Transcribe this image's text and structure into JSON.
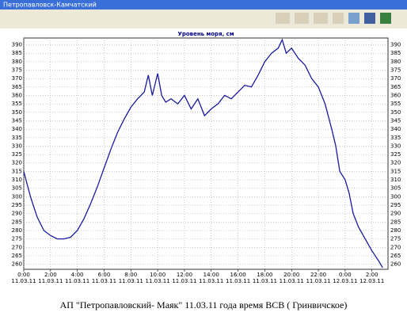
{
  "window_title": "Петропавловск-Камчатский",
  "caption": "АП \"Петропавловский- Маяк\" 11.03.11 года время ВСВ ( Гринвичское)",
  "chart_data": {
    "type": "line",
    "title": "Уровень моря, см",
    "x": [
      0,
      0.5,
      1,
      1.5,
      2,
      2.5,
      3,
      3.5,
      4,
      4.5,
      5,
      5.5,
      6,
      6.5,
      7,
      7.5,
      8,
      8.5,
      9,
      9.3,
      9.6,
      10,
      10.3,
      10.6,
      11,
      11.5,
      12,
      12.5,
      13,
      13.5,
      14,
      14.5,
      15,
      15.5,
      16,
      16.5,
      17,
      17.5,
      18,
      18.5,
      19,
      19.3,
      19.6,
      20,
      20.5,
      21,
      21.5,
      22,
      22.5,
      23,
      23.3,
      23.6,
      24,
      24.3,
      24.6,
      25,
      25.5,
      26,
      26.5,
      26.8
    ],
    "series": [
      {
        "name": "Уровень",
        "color": "#1a1a9c",
        "values": [
          315,
          300,
          288,
          280,
          277,
          275,
          275,
          276,
          280,
          287,
          296,
          306,
          317,
          328,
          338,
          346,
          353,
          358,
          362,
          372,
          360,
          373,
          360,
          356,
          358,
          355,
          360,
          352,
          358,
          348,
          352,
          355,
          360,
          358,
          362,
          366,
          365,
          372,
          380,
          385,
          388,
          393,
          385,
          388,
          382,
          378,
          370,
          365,
          355,
          340,
          330,
          315,
          310,
          302,
          290,
          282,
          275,
          268,
          262,
          258
        ]
      }
    ],
    "xlim": [
      0,
      27.2
    ],
    "ylim": [
      257,
      394
    ],
    "xticks": [
      {
        "value": 0,
        "label": "0:00"
      },
      {
        "value": 2,
        "label": "2:00"
      },
      {
        "value": 4,
        "label": "4:00"
      },
      {
        "value": 6,
        "label": "6:00"
      },
      {
        "value": 8,
        "label": "8:00"
      },
      {
        "value": 10,
        "label": "10:00"
      },
      {
        "value": 12,
        "label": "12:00"
      },
      {
        "value": 14,
        "label": "14:00"
      },
      {
        "value": 16,
        "label": "16:00"
      },
      {
        "value": 18,
        "label": "18:00"
      },
      {
        "value": 20,
        "label": "20:00"
      },
      {
        "value": 22,
        "label": "22:00"
      },
      {
        "value": 24,
        "label": "0:00"
      },
      {
        "value": 26,
        "label": "2:00"
      }
    ],
    "xtick_dates": [
      "11.03.11",
      "11.03.11",
      "11.03.11",
      "11.03.11",
      "11.03.11",
      "11.03.11",
      "11.03.11",
      "11.03.11",
      "11.03.11",
      "11.03.11",
      "11.03.11",
      "11.03.11",
      "12.03.11",
      "12.03.11"
    ],
    "yticks": [
      260,
      265,
      270,
      275,
      280,
      285,
      290,
      295,
      300,
      305,
      310,
      315,
      320,
      325,
      330,
      335,
      340,
      345,
      350,
      355,
      360,
      365,
      370,
      375,
      380,
      385,
      390
    ],
    "grid": true
  }
}
